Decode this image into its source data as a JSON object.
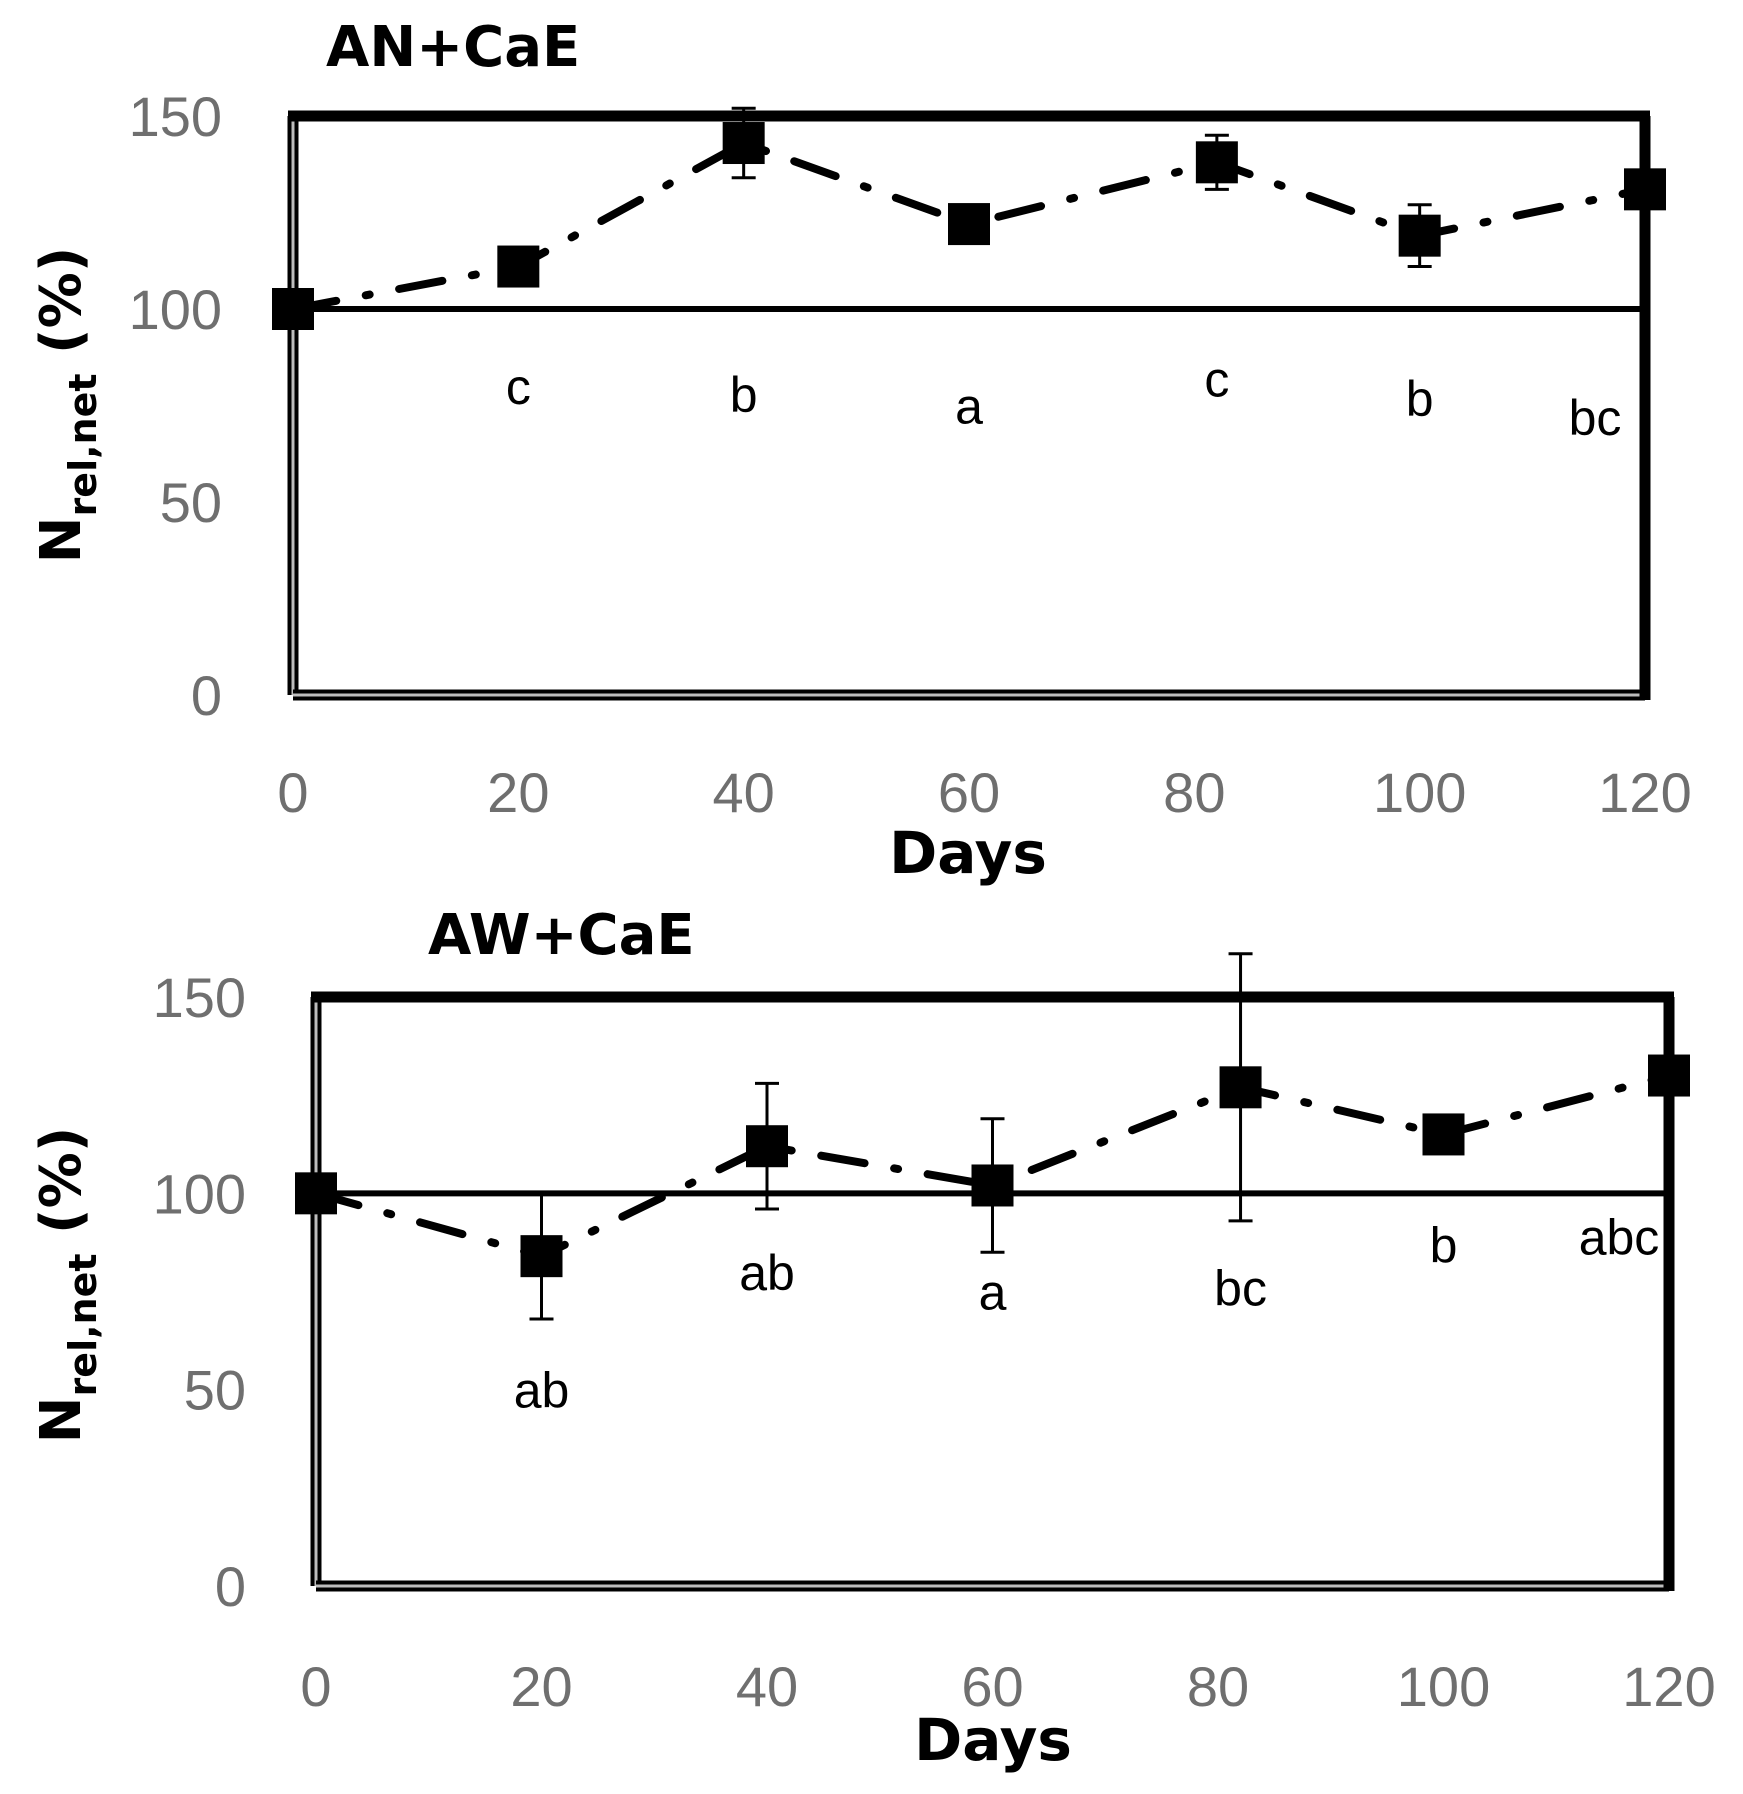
{
  "chart_data": [
    {
      "type": "line",
      "title": "AN+CaE",
      "xlabel": "Days",
      "ylabel": {
        "main": "N",
        "sub": "rel,net",
        "unit": "(%)"
      },
      "xlim": [
        0,
        120
      ],
      "ylim": [
        0,
        150
      ],
      "xticks": [
        "0",
        "20",
        "40",
        "60",
        "80",
        "100",
        "120"
      ],
      "yticks": [
        "0",
        "50",
        "100",
        "150"
      ],
      "reference_line": 100,
      "x": [
        0,
        20,
        40,
        60,
        82,
        100,
        120
      ],
      "values": [
        100,
        111,
        143,
        122,
        138,
        119,
        131
      ],
      "errors": [
        0,
        0,
        9,
        0,
        7,
        8,
        0
      ],
      "letters": [
        "",
        "c",
        "b",
        "a",
        "c",
        "b",
        "bc"
      ],
      "letter_positions": [
        0,
        80,
        78,
        75,
        82,
        77,
        72
      ]
    },
    {
      "type": "line",
      "title": "AW+CaE",
      "xlabel": "Days",
      "ylabel": {
        "main": "N",
        "sub": "rel,net",
        "unit": "(%)"
      },
      "xlim": [
        0,
        120
      ],
      "ylim": [
        0,
        150
      ],
      "xticks": [
        "0",
        "20",
        "40",
        "60",
        "80",
        "100",
        "120"
      ],
      "yticks": [
        "0",
        "50",
        "100",
        "150"
      ],
      "reference_line": 100,
      "x": [
        0,
        20,
        40,
        60,
        82,
        100,
        120
      ],
      "values": [
        100,
        84,
        112,
        102,
        127,
        115,
        130
      ],
      "errors": [
        0,
        16,
        16,
        17,
        34,
        0,
        0
      ],
      "letters": [
        "",
        "ab",
        "ab",
        "a",
        "bc",
        "b",
        "abc"
      ],
      "letter_positions": [
        0,
        50,
        80,
        75,
        76,
        87,
        89
      ]
    }
  ]
}
